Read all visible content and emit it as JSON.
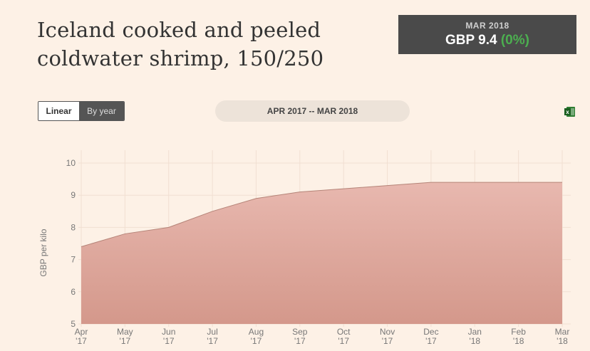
{
  "title_lines": [
    "Iceland cooked and peeled",
    "coldwater shrimp, 150/250"
  ],
  "price_box": {
    "period": "MAR 2018",
    "price": "GBP 9.4",
    "change": "(0%)"
  },
  "toggle": {
    "linear": "Linear",
    "by_year": "By year"
  },
  "date_range": "APR 2017 -- MAR 2018",
  "icons": {
    "export": "excel-icon"
  },
  "colors": {
    "area_fill_top": "#e8b8af",
    "area_fill_bottom": "#d4988b",
    "area_line": "#b58478",
    "change_positive": "#4caf50"
  },
  "chart_data": {
    "type": "area",
    "ylabel": "GBP per kilo",
    "ylim": [
      5,
      10
    ],
    "yticks": [
      5,
      6,
      7,
      8,
      9,
      10
    ],
    "grid": true,
    "categories": [
      [
        "Apr",
        "'17"
      ],
      [
        "May",
        "'17"
      ],
      [
        "Jun",
        "'17"
      ],
      [
        "Jul",
        "'17"
      ],
      [
        "Aug",
        "'17"
      ],
      [
        "Sep",
        "'17"
      ],
      [
        "Oct",
        "'17"
      ],
      [
        "Nov",
        "'17"
      ],
      [
        "Dec",
        "'17"
      ],
      [
        "Jan",
        "'18"
      ],
      [
        "Feb",
        "'18"
      ],
      [
        "Mar",
        "'18"
      ]
    ],
    "values": [
      7.4,
      7.8,
      8.0,
      8.5,
      8.9,
      9.1,
      9.2,
      9.3,
      9.4,
      9.4,
      9.4,
      9.4
    ]
  }
}
